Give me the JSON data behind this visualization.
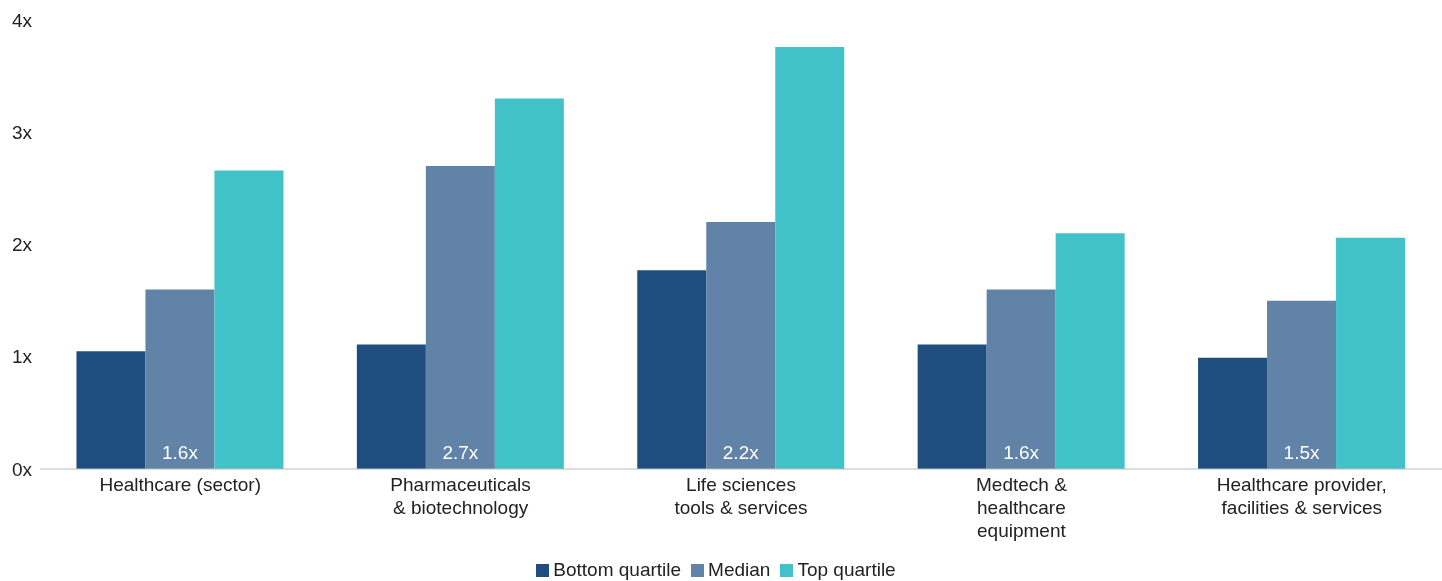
{
  "chart_data": {
    "type": "bar",
    "categories": [
      "Healthcare (sector)",
      "Pharmaceuticals\n& biotechnology",
      "Life sciences\ntools & services",
      "Medtech &\nhealthcare\nequipment",
      "Healthcare provider,\nfacilities & services"
    ],
    "series": [
      {
        "name": "Bottom quartile",
        "color": "#1f4e7e",
        "values": [
          1.05,
          1.11,
          1.77,
          1.11,
          0.99
        ]
      },
      {
        "name": "Median",
        "color": "#6083a7",
        "values": [
          1.6,
          2.7,
          2.2,
          1.6,
          1.5
        ],
        "value_labels": [
          "1.6x",
          "2.7x",
          "2.2x",
          "1.6x",
          "1.5x"
        ]
      },
      {
        "name": "Top quartile",
        "color": "#40c2c8",
        "values": [
          2.66,
          3.3,
          3.76,
          2.1,
          2.06
        ]
      }
    ],
    "ylim": [
      0,
      4
    ],
    "yticks": [
      {
        "value": 0,
        "label": "0x"
      },
      {
        "value": 1,
        "label": "1x"
      },
      {
        "value": 2,
        "label": "2x"
      },
      {
        "value": 3,
        "label": "3x"
      },
      {
        "value": 4,
        "label": "4x"
      }
    ],
    "grid": false,
    "legend": "bottom"
  }
}
